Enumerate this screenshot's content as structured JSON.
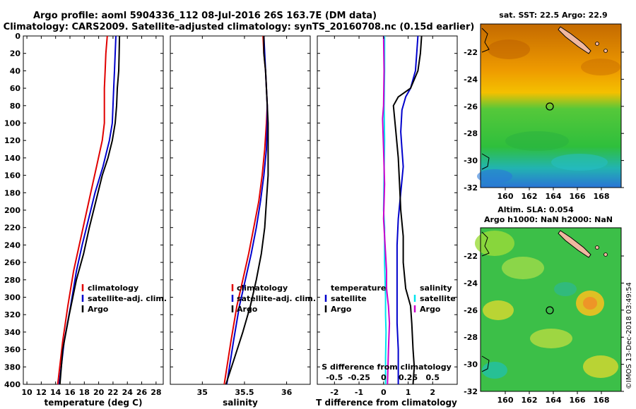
{
  "header": {
    "line1": "Argo profile: aoml 5904336_112 08-Jul-2016 26S 163.7E (DM data)",
    "line2": "Climatology: CARS2009. Satellite-adjusted climatology: synTS_20160708.nc (0.15d earlier)"
  },
  "colors": {
    "climatology": "#e00000",
    "satellite": "#0000cc",
    "argo": "#000000",
    "sal_satellite": "#00e5ee",
    "sal_argo": "#cc00cc"
  },
  "chart_data": [
    {
      "id": "temperature",
      "type": "line",
      "xlabel": "temperature (deg C)",
      "ylabel": "",
      "xlim": [
        9.5,
        29
      ],
      "ylim": [
        0,
        400
      ],
      "xticks": [
        10,
        12,
        14,
        16,
        18,
        20,
        22,
        24,
        26,
        28
      ],
      "yticks": [
        0,
        20,
        40,
        60,
        80,
        100,
        120,
        140,
        160,
        180,
        200,
        220,
        240,
        260,
        280,
        300,
        320,
        340,
        360,
        380,
        400
      ],
      "legend": [
        "climatology",
        "satellite-adj. clim.",
        "Argo"
      ],
      "series": [
        {
          "name": "climatology",
          "x": [
            21.2,
            21.0,
            20.9,
            20.8,
            20.8,
            20.8,
            20.5,
            19.7,
            18.9,
            18.1,
            17.3,
            16.5,
            15.7,
            15.0,
            14.3
          ],
          "y": [
            0,
            20,
            40,
            60,
            80,
            100,
            120,
            150,
            180,
            210,
            240,
            270,
            310,
            350,
            400
          ]
        },
        {
          "name": "satellite-adj. clim.",
          "x": [
            22.4,
            22.3,
            22.2,
            22.1,
            22.0,
            21.9,
            21.5,
            20.6,
            19.5,
            18.6,
            17.7,
            16.9,
            16.1,
            15.2,
            14.5
          ],
          "y": [
            0,
            20,
            40,
            60,
            80,
            100,
            120,
            150,
            180,
            210,
            240,
            270,
            310,
            350,
            400
          ]
        },
        {
          "name": "Argo",
          "x": [
            22.9,
            22.85,
            22.8,
            22.6,
            22.5,
            22.3,
            21.9,
            21.3,
            20.5,
            19.6,
            18.7,
            17.9,
            16.9,
            15.9,
            15.0,
            14.6
          ],
          "y": [
            0,
            20,
            40,
            60,
            80,
            100,
            120,
            140,
            160,
            190,
            220,
            250,
            280,
            320,
            360,
            400
          ]
        }
      ]
    },
    {
      "id": "salinity",
      "type": "line",
      "xlabel": "salinity",
      "ylabel": "",
      "xlim": [
        34.62,
        36.28
      ],
      "ylim": [
        0,
        400
      ],
      "xticks": [
        35,
        35.5,
        36
      ],
      "legend": [
        "climatology",
        "satellite-adj. clim.",
        "Argo"
      ],
      "series": [
        {
          "name": "climatology",
          "x": [
            35.72,
            35.73,
            35.75,
            35.76,
            35.77,
            35.76,
            35.74,
            35.71,
            35.67,
            35.61,
            35.55,
            35.48,
            35.41,
            35.34,
            35.26
          ],
          "y": [
            0,
            20,
            40,
            60,
            80,
            100,
            130,
            160,
            190,
            220,
            250,
            280,
            310,
            350,
            400
          ]
        },
        {
          "name": "satellite-adj. clim.",
          "x": [
            35.73,
            35.74,
            35.75,
            35.76,
            35.77,
            35.77,
            35.76,
            35.73,
            35.69,
            35.64,
            35.58,
            35.51,
            35.44,
            35.37,
            35.29
          ],
          "y": [
            0,
            20,
            40,
            60,
            80,
            100,
            130,
            160,
            190,
            220,
            250,
            280,
            310,
            350,
            400
          ]
        },
        {
          "name": "Argo",
          "x": [
            35.73,
            35.73,
            35.75,
            35.76,
            35.77,
            35.78,
            35.78,
            35.78,
            35.76,
            35.74,
            35.7,
            35.64,
            35.57,
            35.48,
            35.38,
            35.28
          ],
          "y": [
            0,
            20,
            40,
            60,
            80,
            100,
            130,
            160,
            190,
            220,
            250,
            280,
            310,
            340,
            370,
            400
          ]
        }
      ]
    },
    {
      "id": "difference",
      "type": "line",
      "xlabel": "T difference from climatology",
      "xlabel_top": "S difference from climatology",
      "xlim": [
        -2.7,
        3.0
      ],
      "ylim": [
        0,
        400
      ],
      "xticks": [
        -2,
        -1,
        0,
        1,
        2
      ],
      "xticks_top": [
        "-0.5",
        "-0.25",
        "0",
        "0.25",
        "0.5"
      ],
      "legend_temperature": {
        "title": "temperature",
        "items": [
          "satellite",
          "Argo"
        ]
      },
      "legend_salinity": {
        "title": "salinity",
        "items": [
          "satellite",
          "Argo"
        ]
      },
      "series": [
        {
          "name": "T satellite",
          "x": [
            1.4,
            1.35,
            1.3,
            1.1,
            0.9,
            0.75,
            0.7,
            0.75,
            0.8,
            0.7,
            0.6,
            0.55,
            0.55,
            0.55,
            0.55,
            0.6,
            0.6,
            0.6
          ],
          "y": [
            0,
            20,
            40,
            60,
            70,
            85,
            110,
            130,
            150,
            180,
            210,
            240,
            270,
            300,
            330,
            360,
            380,
            400
          ]
        },
        {
          "name": "T Argo",
          "x": [
            1.55,
            1.5,
            1.4,
            1.1,
            0.6,
            0.4,
            0.5,
            0.6,
            0.65,
            0.7,
            0.8,
            0.8,
            0.9,
            1.1,
            1.15,
            1.2,
            1.25,
            1.2
          ],
          "y": [
            0,
            20,
            40,
            60,
            70,
            80,
            110,
            140,
            170,
            200,
            230,
            260,
            290,
            310,
            330,
            360,
            380,
            400
          ]
        },
        {
          "name": "S satellite",
          "x": [
            0.01,
            0.01,
            0.005,
            0.01,
            0.005,
            0.0,
            0.01,
            0.01,
            0.01,
            0.015,
            0.02,
            0.02,
            0.025,
            0.02,
            0.02
          ],
          "y": [
            0,
            40,
            80,
            120,
            160,
            200,
            220,
            240,
            260,
            280,
            300,
            320,
            340,
            370,
            400
          ]
        },
        {
          "name": "S Argo",
          "x": [
            0.0,
            0.005,
            0.0,
            -0.01,
            0.0,
            0.01,
            0.0,
            0.01,
            0.02,
            0.03,
            0.03,
            0.04,
            0.05,
            0.06,
            0.05,
            0.04
          ],
          "y": [
            0,
            40,
            80,
            95,
            130,
            170,
            210,
            230,
            250,
            270,
            290,
            300,
            310,
            330,
            360,
            400
          ]
        }
      ]
    }
  ],
  "maps": {
    "sst": {
      "title": "sat. SST: 22.5 Argo: 22.9",
      "xticks": [
        "160",
        "162",
        "164",
        "166",
        "168"
      ],
      "yticks": [
        "-22",
        "-24",
        "-26",
        "-28",
        "-30",
        "-32"
      ]
    },
    "sla": {
      "title1": "Altim. SLA: 0.054",
      "title2": "Argo h1000: NaN h2000: NaN",
      "xticks": [
        "160",
        "162",
        "164",
        "166",
        "168"
      ],
      "yticks": [
        "-22",
        "-24",
        "-26",
        "-28",
        "-30",
        "-32"
      ]
    }
  },
  "footer": {
    "credit": "©IMOS 13-Dec-2018 03:49:54"
  }
}
